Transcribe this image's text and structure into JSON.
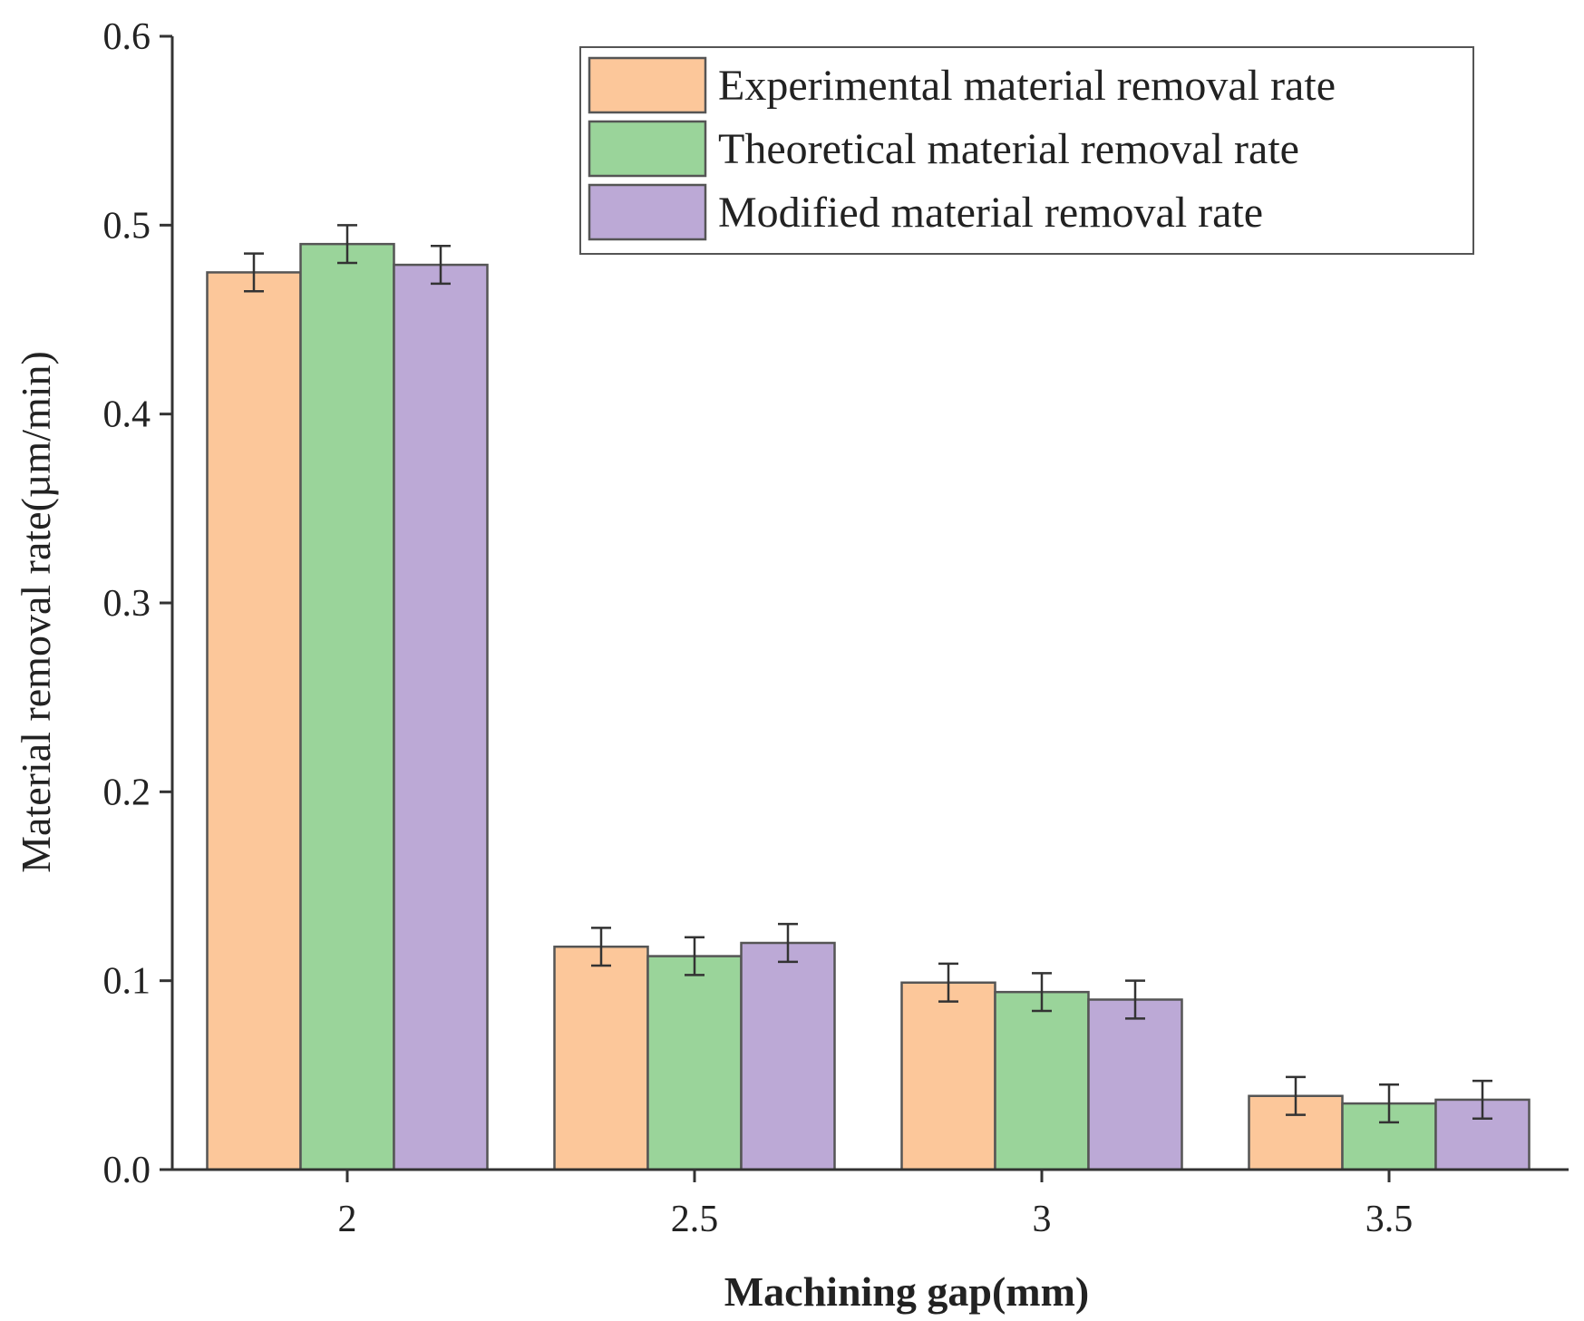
{
  "chart_data": {
    "type": "bar",
    "title": "",
    "xlabel": "Machining gap(mm)",
    "ylabel": "Material removal rate(µm/min)",
    "categories": [
      "2",
      "2.5",
      "3",
      "3.5"
    ],
    "ylim": [
      0,
      0.6
    ],
    "yticks": [
      "0.0",
      "0.1",
      "0.2",
      "0.3",
      "0.4",
      "0.5",
      "0.6"
    ],
    "legend_position": "top-right",
    "grid": false,
    "series": [
      {
        "name": "Experimental material removal rate",
        "color": "#FCC79A",
        "values": [
          0.475,
          0.118,
          0.099,
          0.039
        ],
        "errors": [
          0.01,
          0.01,
          0.01,
          0.01
        ]
      },
      {
        "name": "Theoretical material removal rate",
        "color": "#9AD49A",
        "values": [
          0.49,
          0.113,
          0.094,
          0.035
        ],
        "errors": [
          0.01,
          0.01,
          0.01,
          0.01
        ]
      },
      {
        "name": "Modified material removal rate",
        "color": "#BCA9D6",
        "values": [
          0.479,
          0.12,
          0.09,
          0.037
        ],
        "errors": [
          0.01,
          0.01,
          0.01,
          0.01
        ]
      }
    ]
  }
}
